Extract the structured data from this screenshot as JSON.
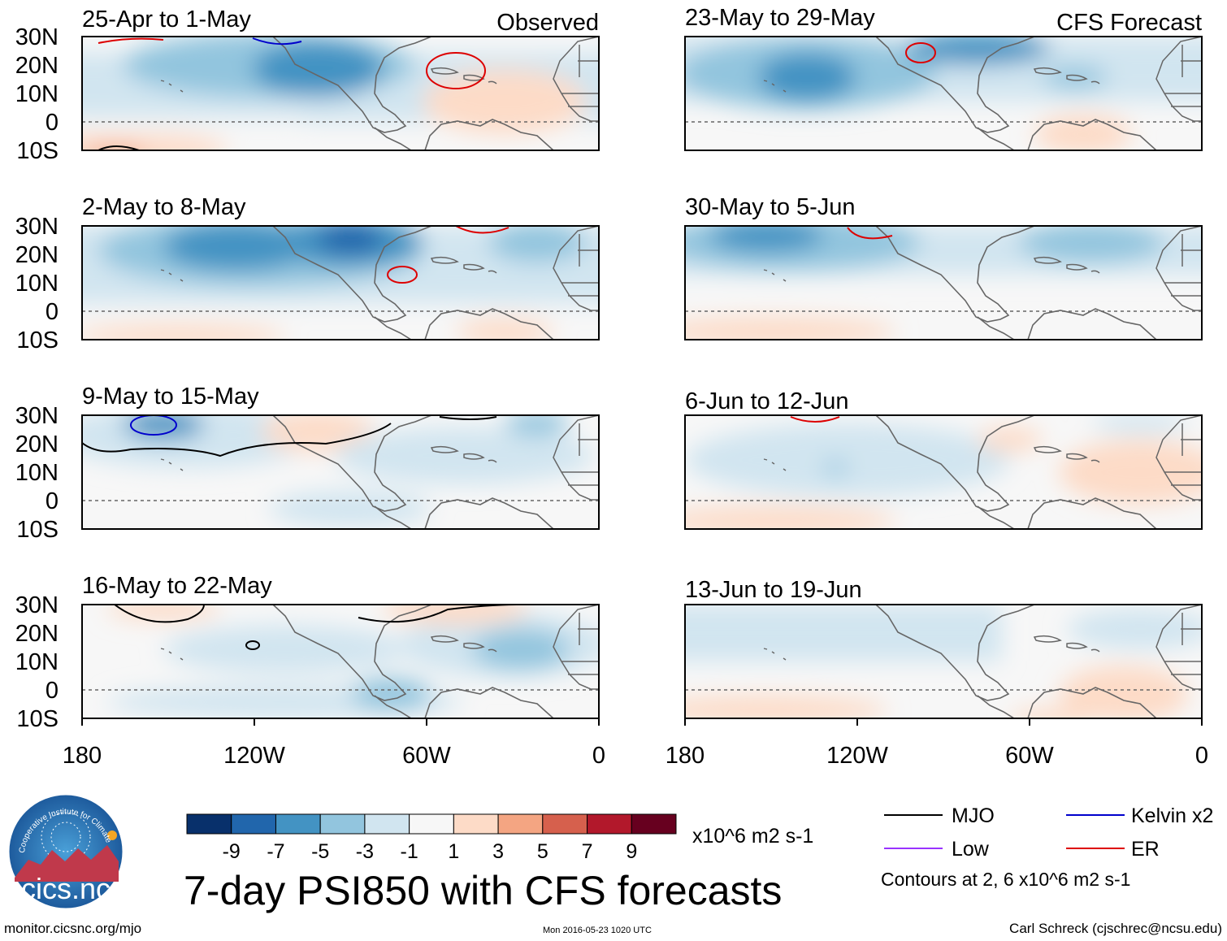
{
  "header": {
    "observed_label": "Observed",
    "forecast_label": "CFS Forecast"
  },
  "latitude_ticks": [
    "30N",
    "20N",
    "10N",
    "0",
    "10S"
  ],
  "longitude_ticks": [
    "180",
    "120W",
    "60W",
    "0"
  ],
  "panels": [
    {
      "title": "25-Apr to 1-May",
      "kind": "observed"
    },
    {
      "title": "2-May to 8-May",
      "kind": "observed"
    },
    {
      "title": "9-May to 15-May",
      "kind": "observed"
    },
    {
      "title": "16-May to 22-May",
      "kind": "observed"
    },
    {
      "title": "23-May to 29-May",
      "kind": "forecast"
    },
    {
      "title": "30-May to 5-Jun",
      "kind": "forecast"
    },
    {
      "title": "6-Jun to 12-Jun",
      "kind": "forecast"
    },
    {
      "title": "13-Jun to 19-Jun",
      "kind": "forecast"
    }
  ],
  "colorbar": {
    "labels": [
      "-9",
      "-7",
      "-5",
      "-3",
      "-1",
      "1",
      "3",
      "5",
      "7",
      "9"
    ],
    "colors": [
      "#08306b",
      "#2166ac",
      "#4393c3",
      "#92c5de",
      "#d1e5f0",
      "#f7f7f7",
      "#fddbc7",
      "#f4a582",
      "#d6604d",
      "#b2182b",
      "#67001f"
    ],
    "units": "x10^6 m2 s-1"
  },
  "main_title": "7-day PSI850 with CFS forecasts",
  "legend": {
    "items": [
      {
        "label": "MJO",
        "color": "#000000"
      },
      {
        "label": "Kelvin x2",
        "color": "#0000cc"
      },
      {
        "label": "Low",
        "color": "#9933ff"
      },
      {
        "label": "ER",
        "color": "#dd0000"
      }
    ],
    "contours_note": "Contours at 2, 6 x10^6 m2 s-1"
  },
  "logo": {
    "name": "cics.nc",
    "ring_text": "Cooperative Institute for Climate and Satellites"
  },
  "footer": {
    "url": "monitor.cicsnc.org/mjo",
    "timestamp": "Mon 2016-05-23 1020 UTC",
    "credit": "Carl Schreck (cjschrec@ncsu.edu)"
  },
  "map_data": {
    "projection": "equirectangular",
    "lon_range": [
      -180,
      0
    ],
    "lat_range": [
      -10,
      30
    ],
    "field": "7-day mean 850-hPa streamfunction anomaly",
    "contour_levels": [
      2,
      6
    ]
  }
}
